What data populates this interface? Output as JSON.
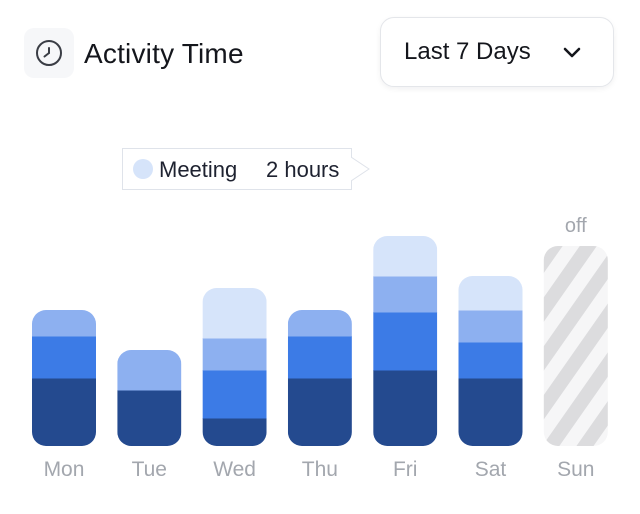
{
  "header": {
    "title": "Activity Time",
    "icon": "clock-icon"
  },
  "range_select": {
    "value": "Last 7 Days",
    "icon": "chevron-down-icon"
  },
  "tooltip": {
    "series": "Meeting",
    "value": "2 hours",
    "color": "#d6e4fa"
  },
  "colors": {
    "layer1": "#244a8f",
    "layer2": "#3c7be6",
    "layer3": "#8db0f0",
    "layer4": "#d6e4fa",
    "off_stripe": "#dcdcde",
    "off_bg": "#f6f6f7"
  },
  "chart_data": {
    "type": "bar",
    "stacked": true,
    "categories": [
      "Mon",
      "Tue",
      "Wed",
      "Thu",
      "Fri",
      "Sat",
      "Sun"
    ],
    "series": [
      {
        "values": [
          3.4,
          2.8,
          1.4,
          3.4,
          3.8,
          3.4,
          0
        ],
        "color": "#244a8f"
      },
      {
        "values": [
          2.1,
          0,
          2.4,
          2.1,
          2.9,
          1.8,
          0
        ],
        "color": "#3c7be6"
      },
      {
        "values": [
          1.3,
          2.0,
          1.6,
          1.3,
          1.8,
          1.6,
          0
        ],
        "color": "#8db0f0"
      },
      {
        "values": [
          0,
          0,
          2.5,
          0,
          2.0,
          1.7,
          0
        ],
        "color": "#d6e4fa"
      }
    ],
    "off_days": [
      "Sun"
    ],
    "off_label": "off",
    "ylim": [
      0,
      11
    ]
  }
}
